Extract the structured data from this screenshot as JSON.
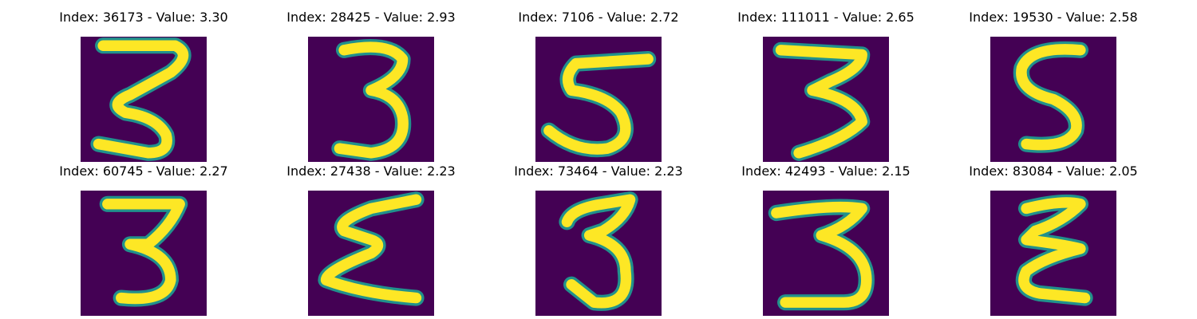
{
  "colors": {
    "background": "#440154",
    "dark_teal": "#31688e",
    "teal": "#21918c",
    "green": "#5ec962",
    "foreground": "#fde725"
  },
  "panels": [
    {
      "title": "Index: 36173 - Value: 3.30",
      "digit": "3"
    },
    {
      "title": "Index: 28425 - Value: 2.93",
      "digit": "3"
    },
    {
      "title": "Index: 7106 - Value: 2.72",
      "digit": "5"
    },
    {
      "title": "Index: 111011 - Value: 2.65",
      "digit": "3"
    },
    {
      "title": "Index: 19530 - Value: 2.58",
      "digit": "5"
    },
    {
      "title": "Index: 60745 - Value: 2.27",
      "digit": "3"
    },
    {
      "title": "Index: 27438 - Value: 2.23",
      "digit": "3"
    },
    {
      "title": "Index: 73464 - Value: 2.23",
      "digit": "3"
    },
    {
      "title": "Index: 42493 - Value: 2.15",
      "digit": "3"
    },
    {
      "title": "Index: 83084 - Value: 2.05",
      "digit": "3"
    }
  ]
}
